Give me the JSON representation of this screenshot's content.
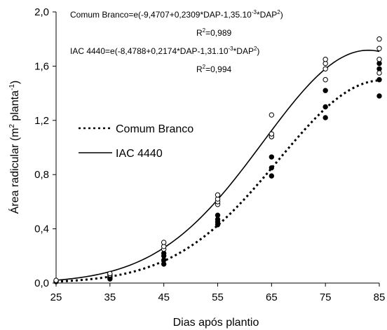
{
  "chart_data": {
    "type": "scatter",
    "xlabel": "Dias após plantio",
    "ylabel_main": "Área radicular (m",
    "ylabel_sup1": "2",
    "ylabel_mid": " planta",
    "ylabel_sup2": "-1",
    "ylabel_end": ")",
    "xlim": [
      25,
      85
    ],
    "ylim": [
      0,
      2.0
    ],
    "x_ticks": [
      "25",
      "35",
      "45",
      "55",
      "65",
      "75",
      "85"
    ],
    "x_tick_values": [
      25,
      35,
      45,
      55,
      65,
      75,
      85
    ],
    "y_ticks": [
      "0,0",
      "0,4",
      "0,8",
      "1,2",
      "1,6",
      "2,0"
    ],
    "y_tick_values": [
      0,
      0.4,
      0.8,
      1.2,
      1.6,
      2.0
    ],
    "equations": {
      "comum": {
        "prefix": "Comum Branco=e(-9,4707+0,2309*DAP-1,35.10",
        "sup": "-3",
        "suffix": "*DAP",
        "sup2": "2",
        "end": ")",
        "r2_prefix": "R",
        "r2_sup": "2",
        "r2_value": "=0,989"
      },
      "iac": {
        "prefix": "IAC 4440=e(-8,4788+0,2174*DAP-1,31.10",
        "sup": "-3",
        "suffix": "*DAP",
        "sup2": "2",
        "end": ")",
        "r2_prefix": "R",
        "r2_sup": "2",
        "r2_value": "=0,994"
      }
    },
    "series": [
      {
        "name": "Comum Branco",
        "line_style": "dotted",
        "marker": "filled-circle",
        "coef": [
          -9.4707,
          0.2309,
          -0.00135
        ],
        "points": [
          [
            25,
            0.01
          ],
          [
            25,
            0.015
          ],
          [
            35,
            0.03
          ],
          [
            35,
            0.04
          ],
          [
            35,
            0.05
          ],
          [
            45,
            0.14
          ],
          [
            45,
            0.17
          ],
          [
            45,
            0.2
          ],
          [
            45,
            0.22
          ],
          [
            55,
            0.43
          ],
          [
            55,
            0.45
          ],
          [
            55,
            0.47
          ],
          [
            55,
            0.5
          ],
          [
            65,
            0.79
          ],
          [
            65,
            0.85
          ],
          [
            65,
            0.93
          ],
          [
            65,
            1.08
          ],
          [
            75,
            1.22
          ],
          [
            75,
            1.3
          ],
          [
            75,
            1.42
          ],
          [
            85,
            1.38
          ],
          [
            85,
            1.5
          ],
          [
            85,
            1.58
          ],
          [
            85,
            1.62
          ]
        ]
      },
      {
        "name": "IAC 4440",
        "line_style": "solid",
        "marker": "open-circle",
        "coef": [
          -8.4788,
          0.2174,
          -0.00131
        ],
        "points": [
          [
            25,
            0.015
          ],
          [
            25,
            0.02
          ],
          [
            35,
            0.06
          ],
          [
            35,
            0.07
          ],
          [
            45,
            0.25
          ],
          [
            45,
            0.27
          ],
          [
            45,
            0.3
          ],
          [
            55,
            0.58
          ],
          [
            55,
            0.6
          ],
          [
            55,
            0.62
          ],
          [
            55,
            0.65
          ],
          [
            65,
            1.08
          ],
          [
            65,
            1.1
          ],
          [
            65,
            1.24
          ],
          [
            75,
            1.5
          ],
          [
            75,
            1.58
          ],
          [
            75,
            1.62
          ],
          [
            75,
            1.65
          ],
          [
            85,
            1.55
          ],
          [
            85,
            1.65
          ],
          [
            85,
            1.73
          ],
          [
            85,
            1.8
          ]
        ]
      }
    ]
  }
}
